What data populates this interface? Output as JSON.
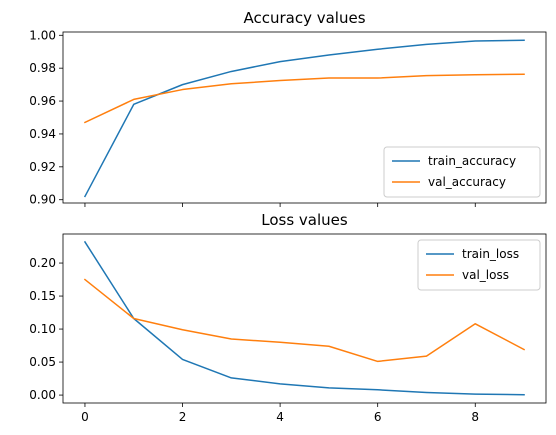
{
  "chart_data": [
    {
      "type": "line",
      "title": "Accuracy values",
      "xlabel": "",
      "ylabel": "",
      "x": [
        0,
        1,
        2,
        3,
        4,
        5,
        6,
        7,
        8,
        9
      ],
      "xlim": [
        -0.45,
        9.45
      ],
      "ylim": [
        0.898,
        1.002
      ],
      "xticks": [
        0,
        2,
        4,
        6,
        8
      ],
      "show_xtick_labels": false,
      "yticks": [
        0.9,
        0.92,
        0.94,
        0.96,
        0.98,
        1.0
      ],
      "ytick_labels": [
        "0.90",
        "0.92",
        "0.94",
        "0.96",
        "0.98",
        "1.00"
      ],
      "grid": false,
      "legend": "lower-right",
      "series": [
        {
          "name": "train_accuracy",
          "color": "#1f77b4",
          "values": [
            0.902,
            0.958,
            0.97,
            0.978,
            0.984,
            0.988,
            0.9915,
            0.9945,
            0.9965,
            0.997
          ]
        },
        {
          "name": "val_accuracy",
          "color": "#ff7f0e",
          "values": [
            0.947,
            0.961,
            0.967,
            0.9705,
            0.9725,
            0.974,
            0.974,
            0.9755,
            0.976,
            0.9763
          ]
        }
      ]
    },
    {
      "type": "line",
      "title": "Loss values",
      "xlabel": "",
      "ylabel": "",
      "x": [
        0,
        1,
        2,
        3,
        4,
        5,
        6,
        7,
        8,
        9
      ],
      "xlim": [
        -0.45,
        9.45
      ],
      "ylim": [
        -0.012,
        0.244
      ],
      "xticks": [
        0,
        2,
        4,
        6,
        8
      ],
      "xtick_labels": [
        "0",
        "2",
        "4",
        "6",
        "8"
      ],
      "show_xtick_labels": true,
      "yticks": [
        0.0,
        0.05,
        0.1,
        0.15,
        0.2
      ],
      "ytick_labels": [
        "0.00",
        "0.05",
        "0.10",
        "0.15",
        "0.20"
      ],
      "grid": false,
      "legend": "upper-right",
      "series": [
        {
          "name": "train_loss",
          "color": "#1f77b4",
          "values": [
            0.232,
            0.116,
            0.054,
            0.026,
            0.017,
            0.011,
            0.008,
            0.004,
            0.0015,
            0.0005
          ]
        },
        {
          "name": "val_loss",
          "color": "#ff7f0e",
          "values": [
            0.175,
            0.116,
            0.099,
            0.085,
            0.08,
            0.074,
            0.051,
            0.059,
            0.108,
            0.069
          ]
        }
      ]
    }
  ]
}
